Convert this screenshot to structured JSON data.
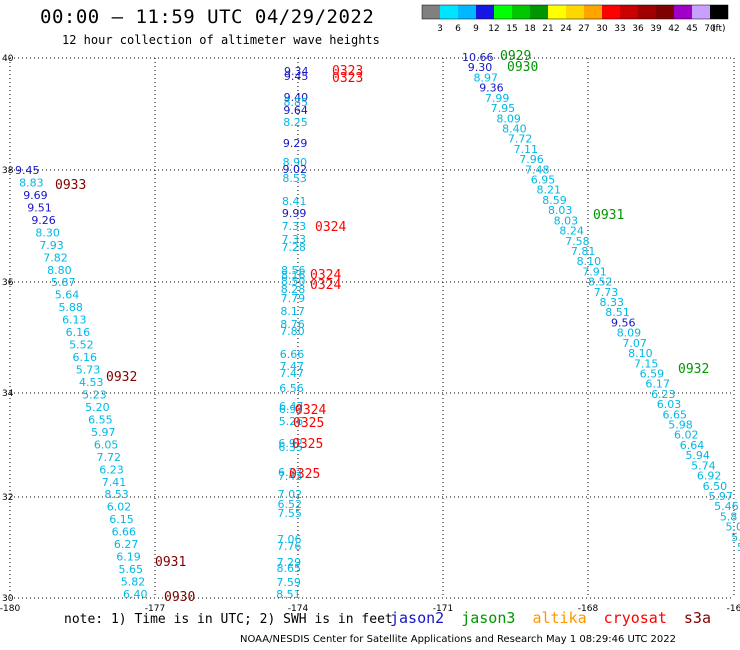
{
  "header": {
    "title": "00:00 – 11:59 UTC 04/29/2022",
    "subtitle": "12 hour collection of altimeter wave heights"
  },
  "colorbar": {
    "ticks": [
      "3",
      "6",
      "9",
      "12",
      "15",
      "18",
      "21",
      "24",
      "27",
      "30",
      "33",
      "36",
      "39",
      "42",
      "45",
      "70"
    ],
    "unit": "(ft)",
    "colors": [
      "#808080",
      "#00e5ff",
      "#00b8ff",
      "#1515e6",
      "#00ff00",
      "#00c800",
      "#009600",
      "#ffff00",
      "#ffd700",
      "#ffa500",
      "#ff0000",
      "#c80000",
      "#a00000",
      "#800000",
      "#a000c8",
      "#c8a0ff",
      "#000000"
    ]
  },
  "axes": {
    "lon_labels": [
      "-180",
      "-177",
      "-174",
      "-171",
      "-168",
      "-16"
    ],
    "lat_labels": [
      "40",
      "38",
      "36",
      "34",
      "32",
      "30"
    ]
  },
  "satellite_colors": {
    "jason2": "#1515c8",
    "jason3": "#009600",
    "altika": "#ff9600",
    "cryosat": "#ff0000",
    "s3a": "#800000",
    "swh": "#00b8e6"
  },
  "tracks": {
    "t1": [
      {
        "t": "9.45",
        "c": "#1515c8"
      },
      {
        "t": "8.83",
        "c": "#00b8e6"
      },
      {
        "t": "9.69",
        "c": "#1515c8"
      },
      {
        "t": "9.51",
        "c": "#1515c8"
      },
      {
        "t": "9.26",
        "c": "#1515c8"
      },
      {
        "t": "8.30",
        "c": "#00b8e6"
      },
      {
        "t": "7.93",
        "c": "#00b8e6"
      },
      {
        "t": "7.82",
        "c": "#00b8e6"
      },
      {
        "t": "8.80",
        "c": "#00b8e6"
      },
      {
        "t": "5.87",
        "c": "#00b8e6"
      },
      {
        "t": "5.64",
        "c": "#00b8e6"
      },
      {
        "t": "5.88",
        "c": "#00b8e6"
      },
      {
        "t": "6.13",
        "c": "#00b8e6"
      },
      {
        "t": "6.16",
        "c": "#00b8e6"
      },
      {
        "t": "5.52",
        "c": "#00b8e6"
      },
      {
        "t": "6.16",
        "c": "#00b8e6"
      },
      {
        "t": "5.73",
        "c": "#00b8e6"
      },
      {
        "t": "4.53",
        "c": "#00b8e6"
      },
      {
        "t": "5.23",
        "c": "#00b8e6"
      },
      {
        "t": "5.20",
        "c": "#00b8e6"
      },
      {
        "t": "6.55",
        "c": "#00b8e6"
      },
      {
        "t": "5.97",
        "c": "#00b8e6"
      },
      {
        "t": "6.05",
        "c": "#00b8e6"
      },
      {
        "t": "7.72",
        "c": "#00b8e6"
      },
      {
        "t": "6.23",
        "c": "#00b8e6"
      },
      {
        "t": "7.41",
        "c": "#00b8e6"
      },
      {
        "t": "8.53",
        "c": "#00b8e6"
      },
      {
        "t": "6.02",
        "c": "#00b8e6"
      },
      {
        "t": "6.15",
        "c": "#00b8e6"
      },
      {
        "t": "6.66",
        "c": "#00b8e6"
      },
      {
        "t": "6.27",
        "c": "#00b8e6"
      },
      {
        "t": "6.19",
        "c": "#00b8e6"
      },
      {
        "t": "5.65",
        "c": "#00b8e6"
      },
      {
        "t": "5.82",
        "c": "#00b8e6"
      },
      {
        "t": "6.40",
        "c": "#00b8e6"
      }
    ],
    "t2": [
      {
        "t": "9.34",
        "c": "#1515c8"
      },
      {
        "t": "9.45",
        "c": "#1515c8"
      },
      {
        "t": "9.40",
        "c": "#1515c8"
      },
      {
        "t": "8.85",
        "c": "#00b8e6"
      },
      {
        "t": "9.64",
        "c": "#1515c8"
      },
      {
        "t": "8.25",
        "c": "#00b8e6"
      },
      {
        "t": "9.29",
        "c": "#1515c8"
      },
      {
        "t": "8.90",
        "c": "#00b8e6"
      },
      {
        "t": "9.02",
        "c": "#1515c8"
      },
      {
        "t": "8.53",
        "c": "#00b8e6"
      },
      {
        "t": "8.41",
        "c": "#00b8e6"
      },
      {
        "t": "9.99",
        "c": "#1515c8"
      },
      {
        "t": "7.33",
        "c": "#00b8e6"
      },
      {
        "t": "7.33",
        "c": "#00b8e6"
      },
      {
        "t": "7.28",
        "c": "#00b8e6"
      },
      {
        "t": "8.56",
        "c": "#00b8e6"
      },
      {
        "t": "8.16",
        "c": "#00b8e6"
      },
      {
        "t": "8.50",
        "c": "#00b8e6"
      },
      {
        "t": "8.28",
        "c": "#00b8e6"
      },
      {
        "t": "7.79",
        "c": "#00b8e6"
      },
      {
        "t": "8.17",
        "c": "#00b8e6"
      },
      {
        "t": "8.76",
        "c": "#00b8e6"
      },
      {
        "t": "7.80",
        "c": "#00b8e6"
      },
      {
        "t": "6.66",
        "c": "#00b8e6"
      },
      {
        "t": "7.47",
        "c": "#00b8e6"
      },
      {
        "t": "7.47",
        "c": "#00b8e6"
      },
      {
        "t": "6.56",
        "c": "#00b8e6"
      },
      {
        "t": "6.47",
        "c": "#00b8e6"
      },
      {
        "t": "6.97",
        "c": "#00b8e6"
      },
      {
        "t": "5.26",
        "c": "#00b8e6"
      },
      {
        "t": "6.92",
        "c": "#00b8e6"
      },
      {
        "t": "6.35",
        "c": "#00b8e6"
      },
      {
        "t": "6.37",
        "c": "#00b8e6"
      },
      {
        "t": "7.43",
        "c": "#00b8e6"
      },
      {
        "t": "7.02",
        "c": "#00b8e6"
      },
      {
        "t": "6.52",
        "c": "#00b8e6"
      },
      {
        "t": "7.55",
        "c": "#00b8e6"
      },
      {
        "t": "7.06",
        "c": "#00b8e6"
      },
      {
        "t": "7.76",
        "c": "#00b8e6"
      },
      {
        "t": "7.29",
        "c": "#00b8e6"
      },
      {
        "t": "8.65",
        "c": "#00b8e6"
      },
      {
        "t": "7.59",
        "c": "#00b8e6"
      },
      {
        "t": "8.51",
        "c": "#00b8e6"
      }
    ],
    "t3": [
      {
        "t": "10.66",
        "c": "#1515c8"
      },
      {
        "t": "9.30",
        "c": "#1515c8"
      },
      {
        "t": "8.97",
        "c": "#00b8e6"
      },
      {
        "t": "9.36",
        "c": "#1515c8"
      },
      {
        "t": "7.99",
        "c": "#00b8e6"
      },
      {
        "t": "7.95",
        "c": "#00b8e6"
      },
      {
        "t": "8.09",
        "c": "#00b8e6"
      },
      {
        "t": "8.40",
        "c": "#00b8e6"
      },
      {
        "t": "7.72",
        "c": "#00b8e6"
      },
      {
        "t": "7.11",
        "c": "#00b8e6"
      },
      {
        "t": "7.96",
        "c": "#00b8e6"
      },
      {
        "t": "7.48",
        "c": "#00b8e6"
      },
      {
        "t": "6.95",
        "c": "#00b8e6"
      },
      {
        "t": "8.21",
        "c": "#00b8e6"
      },
      {
        "t": "8.59",
        "c": "#00b8e6"
      },
      {
        "t": "8.03",
        "c": "#00b8e6"
      },
      {
        "t": "8.03",
        "c": "#00b8e6"
      },
      {
        "t": "8.24",
        "c": "#00b8e6"
      },
      {
        "t": "7.58",
        "c": "#00b8e6"
      },
      {
        "t": "7.81",
        "c": "#00b8e6"
      },
      {
        "t": "8.10",
        "c": "#00b8e6"
      },
      {
        "t": "7.91",
        "c": "#00b8e6"
      },
      {
        "t": "8.52",
        "c": "#00b8e6"
      },
      {
        "t": "7.73",
        "c": "#00b8e6"
      },
      {
        "t": "8.33",
        "c": "#00b8e6"
      },
      {
        "t": "8.51",
        "c": "#00b8e6"
      },
      {
        "t": "9.56",
        "c": "#1515c8"
      },
      {
        "t": "8.09",
        "c": "#00b8e6"
      },
      {
        "t": "7.07",
        "c": "#00b8e6"
      },
      {
        "t": "8.10",
        "c": "#00b8e6"
      },
      {
        "t": "7.15",
        "c": "#00b8e6"
      },
      {
        "t": "6.59",
        "c": "#00b8e6"
      },
      {
        "t": "6.17",
        "c": "#00b8e6"
      },
      {
        "t": "6.23",
        "c": "#00b8e6"
      },
      {
        "t": "6.03",
        "c": "#00b8e6"
      },
      {
        "t": "6.65",
        "c": "#00b8e6"
      },
      {
        "t": "5.98",
        "c": "#00b8e6"
      },
      {
        "t": "6.02",
        "c": "#00b8e6"
      },
      {
        "t": "6.64",
        "c": "#00b8e6"
      },
      {
        "t": "5.94",
        "c": "#00b8e6"
      },
      {
        "t": "5.74",
        "c": "#00b8e6"
      },
      {
        "t": "6.92",
        "c": "#00b8e6"
      },
      {
        "t": "6.50",
        "c": "#00b8e6"
      },
      {
        "t": "5.97",
        "c": "#00b8e6"
      },
      {
        "t": "5.46",
        "c": "#00b8e6"
      },
      {
        "t": "5.8",
        "c": "#00b8e6"
      },
      {
        "t": "5.0",
        "c": "#00b8e6"
      },
      {
        "t": "5.",
        "c": "#00b8e6"
      },
      {
        "t": "5",
        "c": "#00b8e6"
      }
    ]
  },
  "time_labels": [
    {
      "t": "0929",
      "c": "#009600"
    },
    {
      "t": "0930",
      "c": "#009600"
    },
    {
      "t": "0323",
      "c": "#ff0000"
    },
    {
      "t": "0323",
      "c": "#ff0000"
    },
    {
      "t": "0933",
      "c": "#800000"
    },
    {
      "t": "0931",
      "c": "#009600"
    },
    {
      "t": "0324",
      "c": "#ff0000"
    },
    {
      "t": "0324",
      "c": "#ff0000"
    },
    {
      "t": "0324",
      "c": "#ff0000"
    },
    {
      "t": "0932",
      "c": "#800000"
    },
    {
      "t": "0932",
      "c": "#009600"
    },
    {
      "t": "0324",
      "c": "#ff0000"
    },
    {
      "t": "0325",
      "c": "#ff0000"
    },
    {
      "t": "0325",
      "c": "#ff0000"
    },
    {
      "t": "0325",
      "c": "#ff0000"
    },
    {
      "t": "0931",
      "c": "#800000"
    },
    {
      "t": "0930",
      "c": "#800000"
    }
  ],
  "note": "note: 1) Time is in UTC; 2) SWH is in feet",
  "legend": {
    "jason2": "jason2",
    "jason3": "jason3",
    "altika": "altika",
    "cryosat": "cryosat",
    "s3a": "s3a"
  },
  "footer": "NOAA/NESDIS Center for Satellite Applications and Research   May  1 08:29:46 UTC 2022"
}
